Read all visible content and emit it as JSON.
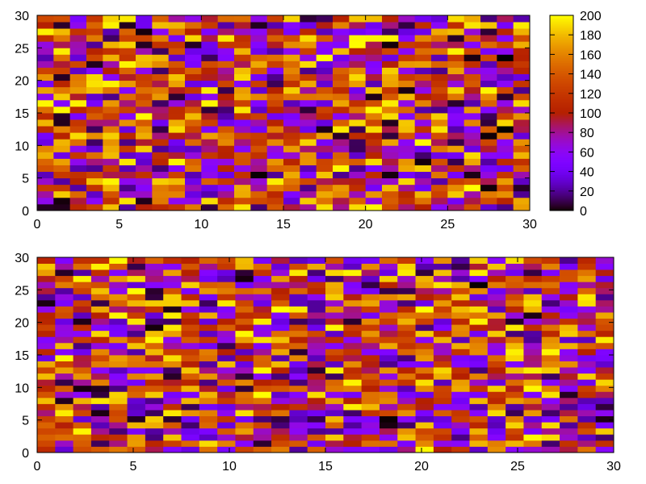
{
  "chart_data": [
    {
      "type": "heatmap",
      "name": "top-heatmap",
      "grid": {
        "cols": 30,
        "rows": 30,
        "x_range": [
          0,
          30
        ],
        "y_range": [
          0,
          30
        ]
      },
      "xlim": [
        0,
        30
      ],
      "ylim": [
        0,
        30
      ],
      "x_ticks": [
        "0",
        "5",
        "10",
        "15",
        "20",
        "25",
        "30"
      ],
      "y_ticks": [
        "0",
        "5",
        "10",
        "15",
        "20",
        "25",
        "30"
      ],
      "zlim": [
        0,
        200
      ],
      "colorbar": {
        "ticks": [
          "0",
          "20",
          "40",
          "60",
          "80",
          "100",
          "120",
          "140",
          "160",
          "180",
          "200"
        ],
        "palette": "gnuplot (black-purple-red-orange-yellow)"
      },
      "values_note": "",
      "seed": 12345
    },
    {
      "type": "heatmap",
      "name": "bottom-heatmap",
      "grid": {
        "cols": 32,
        "rows": 32,
        "x_range": [
          0,
          30
        ],
        "y_range": [
          0,
          30
        ]
      },
      "xlim": [
        0,
        30
      ],
      "ylim": [
        0,
        30
      ],
      "x_ticks": [
        "0",
        "5",
        "10",
        "15",
        "20",
        "25",
        "30"
      ],
      "y_ticks": [
        "0",
        "5",
        "10",
        "15",
        "20",
        "25",
        "30"
      ],
      "zlim": [
        0,
        200
      ],
      "seed": 67890
    }
  ]
}
